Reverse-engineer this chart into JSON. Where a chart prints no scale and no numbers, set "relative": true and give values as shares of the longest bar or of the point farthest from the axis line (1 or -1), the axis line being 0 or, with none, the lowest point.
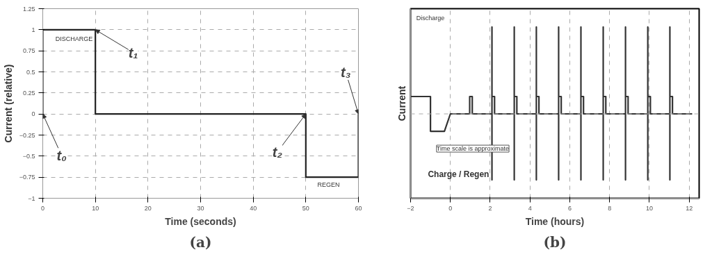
{
  "chart_data": [
    {
      "type": "line",
      "title": "(a)",
      "xlabel": "Time (seconds)",
      "ylabel": "Current (relative)",
      "series": [
        {
          "color": "#222222",
          "x": [
            0,
            0,
            10,
            10,
            50,
            50,
            60,
            60
          ],
          "values": [
            0,
            1,
            1,
            0,
            0,
            -0.75,
            -0.75,
            0
          ]
        }
      ],
      "xlim": [
        0,
        60
      ],
      "xticks": [
        0,
        10,
        20,
        30,
        40,
        50,
        60
      ],
      "ylim": [
        -1,
        1.25
      ],
      "yticks": [
        -1,
        -0.75,
        -0.5,
        -0.25,
        0,
        0.25,
        0.5,
        0.75,
        1,
        1.25
      ],
      "grid": true,
      "marker": "none",
      "line_style": "solid",
      "annotations": [
        "DISCHARGE",
        "REGEN",
        {
          "text": "t₀",
          "x": 0,
          "y": 0
        },
        {
          "text": "t₁",
          "x": 10,
          "y": 1
        },
        {
          "text": "t₂",
          "x": 50,
          "y": 0
        },
        {
          "text": "t₃",
          "x": 60,
          "y": 0
        }
      ]
    },
    {
      "type": "line",
      "title": "(b)",
      "xlabel": "Time (hours)",
      "ylabel": "Current",
      "relative": true,
      "series": [
        {
          "color": "#333333",
          "x": [
            -2,
            -1,
            -1,
            -0.3,
            0,
            0.97,
            0.97,
            1.1,
            1.1,
            2.09,
            2.09,
            2.09,
            2.09,
            2.22,
            2.22,
            3.21,
            3.21,
            3.21,
            3.21,
            3.34,
            3.34,
            4.32,
            4.32,
            4.32,
            4.32,
            4.45,
            4.45,
            5.44,
            5.44,
            5.44,
            5.44,
            5.57,
            5.57,
            6.56,
            6.56,
            6.56,
            6.56,
            6.69,
            6.69,
            7.68,
            7.68,
            7.68,
            7.68,
            7.81,
            7.81,
            8.8,
            8.8,
            8.8,
            8.8,
            8.93,
            8.93,
            9.92,
            9.92,
            9.92,
            9.92,
            10.05,
            10.05,
            11.03,
            11.03,
            11.03,
            11.03,
            11.16,
            11.16,
            12.15
          ],
          "values": [
            0.2,
            0.2,
            -0.2,
            -0.2,
            0,
            0,
            0.2,
            0.2,
            0,
            0,
            1,
            -0.76,
            0.2,
            0.2,
            0,
            0,
            1,
            -0.76,
            0.2,
            0.2,
            0,
            0,
            1,
            -0.76,
            0.2,
            0.2,
            0,
            0,
            1,
            -0.76,
            0.2,
            0.2,
            0,
            0,
            1,
            -0.76,
            0.2,
            0.2,
            0,
            0,
            1,
            -0.76,
            0.2,
            0.2,
            0,
            0,
            1,
            -0.76,
            0.2,
            0.2,
            0,
            0,
            1,
            -0.76,
            0.2,
            0.2,
            0,
            0,
            1,
            -0.76,
            0.2,
            0.2,
            0,
            0
          ]
        }
      ],
      "xlim": [
        -2,
        12.5
      ],
      "xticks": [
        -2,
        0,
        2,
        4,
        6,
        8,
        10,
        12
      ],
      "grid": "x",
      "marker": "none",
      "line_style": "solid",
      "ref_lines": [
        {
          "axis": "y",
          "value": 0,
          "line_style": "dashed",
          "color": "#aaaaaa"
        }
      ],
      "annotations": [
        "Discharge",
        "Time scale is approximate",
        "Charge / Regen"
      ]
    }
  ]
}
